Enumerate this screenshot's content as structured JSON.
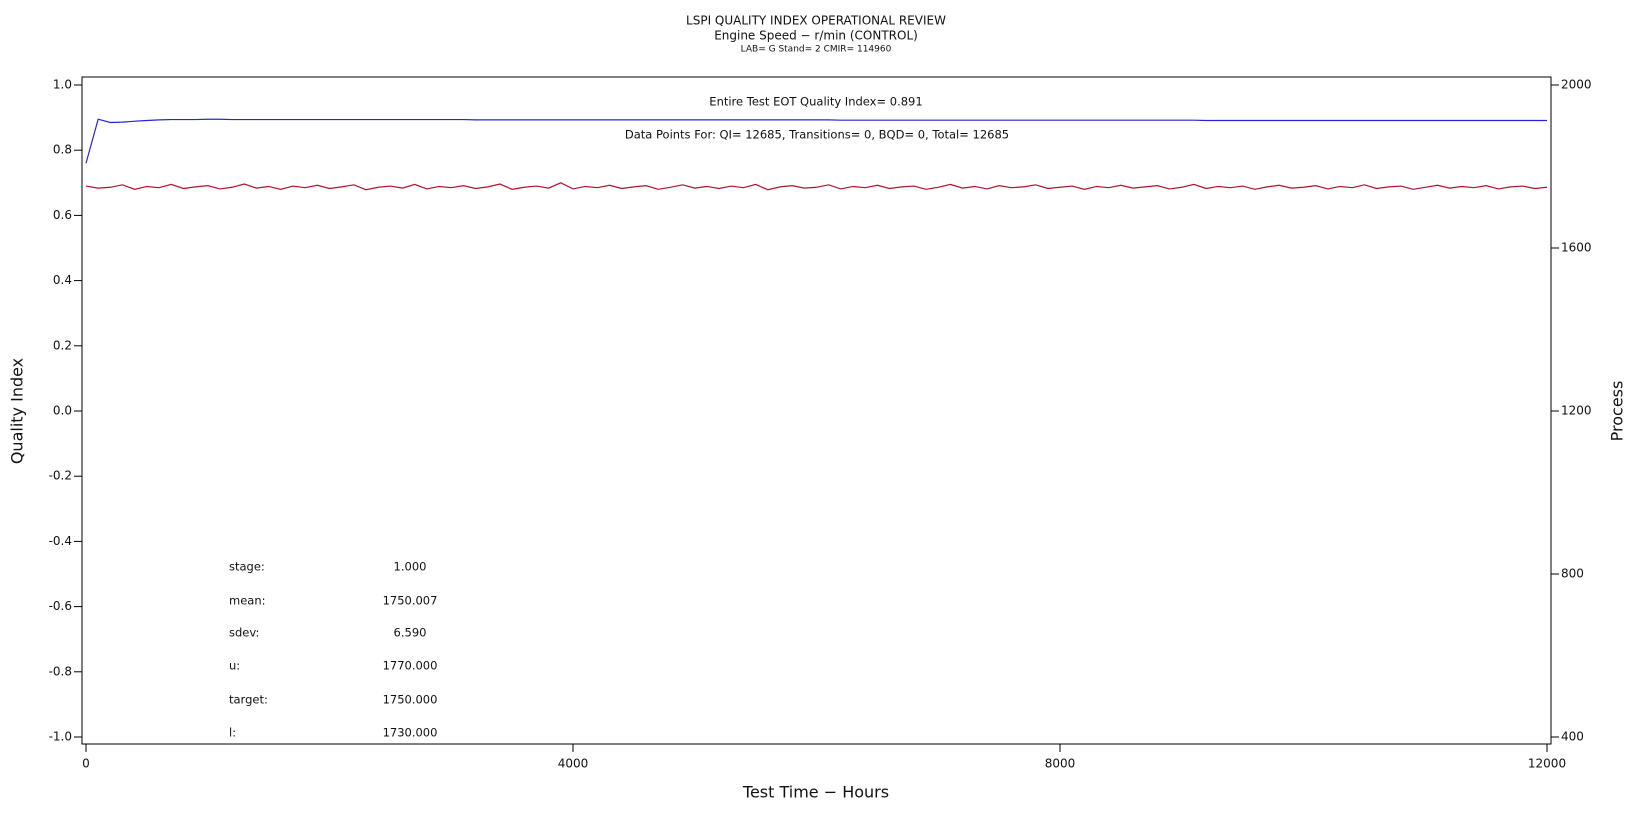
{
  "chart_data": {
    "type": "line",
    "title": "LSPI QUALITY INDEX OPERATIONAL REVIEW",
    "subtitle": "Engine Speed − r/min (CONTROL)",
    "subtitle2": "LAB= G Stand= 2 CMIR= 114960",
    "xlabel": "Test Time − Hours",
    "ylabel": "Quality Index",
    "y2label": "Process",
    "xlim": [
      0,
      12000
    ],
    "xticks": [
      0,
      4000,
      8000,
      12000
    ],
    "ylim": [
      -1,
      1
    ],
    "yticks": [
      {
        "value": -1,
        "label": "-1.0"
      },
      -0.8,
      -0.6,
      -0.4,
      -0.2,
      {
        "value": 0,
        "label": "0.0"
      },
      0.2,
      0.4,
      0.6,
      0.8,
      {
        "value": 1,
        "label": "1.0"
      }
    ],
    "y2lim": [
      400,
      2000
    ],
    "y2ticks": [
      400,
      800,
      1200,
      1600,
      2000
    ],
    "annotations": [
      "Entire Test EOT Quality Index=   0.891",
      "Data Points For: QI= 12685, Transitions=     0, BQD=     0, Total= 12685"
    ],
    "stats": [
      {
        "label": "stage:",
        "value": "1.000"
      },
      {
        "label": "mean:",
        "value": "1750.007"
      },
      {
        "label": "sdev:",
        "value": "6.590"
      },
      {
        "label": "u:",
        "value": "1770.000"
      },
      {
        "label": "target:",
        "value": "1750.000"
      },
      {
        "label": "l:",
        "value": "1730.000"
      }
    ],
    "x": [
      0,
      100,
      200,
      300,
      400,
      500,
      600,
      700,
      800,
      900,
      1000,
      1100,
      1200,
      1300,
      1400,
      1500,
      1600,
      1700,
      1800,
      1900,
      2000,
      2100,
      2200,
      2300,
      2400,
      2500,
      2600,
      2700,
      2800,
      2900,
      3000,
      3100,
      3200,
      3300,
      3400,
      3500,
      3600,
      3700,
      3800,
      3900,
      4000,
      4100,
      4200,
      4300,
      4400,
      4500,
      4600,
      4700,
      4800,
      4900,
      5000,
      5100,
      5200,
      5300,
      5400,
      5500,
      5600,
      5700,
      5800,
      5900,
      6000,
      6100,
      6200,
      6300,
      6400,
      6500,
      6600,
      6700,
      6800,
      6900,
      7000,
      7100,
      7200,
      7300,
      7400,
      7500,
      7600,
      7700,
      7800,
      7900,
      8000,
      8100,
      8200,
      8300,
      8400,
      8500,
      8600,
      8700,
      8800,
      8900,
      9000,
      9100,
      9200,
      9300,
      9400,
      9500,
      9600,
      9700,
      9800,
      9900,
      10000,
      10100,
      10200,
      10300,
      10400,
      10500,
      10600,
      10700,
      10800,
      10900,
      11000,
      11100,
      11200,
      11300,
      11400,
      11500,
      11600,
      11700,
      11800,
      11900,
      12000
    ],
    "series": [
      {
        "name": "Quality Index",
        "color": "#2424d8",
        "values": [
          0.76,
          0.895,
          0.885,
          0.886,
          0.889,
          0.891,
          0.893,
          0.894,
          0.894,
          0.894,
          0.895,
          0.895,
          0.894,
          0.894,
          0.894,
          0.894,
          0.894,
          0.894,
          0.894,
          0.894,
          0.894,
          0.894,
          0.894,
          0.894,
          0.894,
          0.894,
          0.894,
          0.894,
          0.894,
          0.894,
          0.894,
          0.894,
          0.893,
          0.893,
          0.893,
          0.893,
          0.893,
          0.893,
          0.893,
          0.893,
          0.893,
          0.893,
          0.893,
          0.893,
          0.893,
          0.893,
          0.893,
          0.893,
          0.893,
          0.893,
          0.893,
          0.893,
          0.893,
          0.893,
          0.893,
          0.893,
          0.893,
          0.893,
          0.893,
          0.893,
          0.893,
          0.893,
          0.892,
          0.892,
          0.892,
          0.892,
          0.892,
          0.892,
          0.892,
          0.892,
          0.892,
          0.892,
          0.892,
          0.892,
          0.892,
          0.892,
          0.892,
          0.892,
          0.892,
          0.892,
          0.892,
          0.892,
          0.892,
          0.892,
          0.892,
          0.892,
          0.892,
          0.892,
          0.892,
          0.892,
          0.892,
          0.892,
          0.891,
          0.891,
          0.891,
          0.891,
          0.891,
          0.891,
          0.891,
          0.891,
          0.891,
          0.891,
          0.891,
          0.891,
          0.891,
          0.891,
          0.891,
          0.891,
          0.891,
          0.891,
          0.891,
          0.891,
          0.891,
          0.891,
          0.891,
          0.891,
          0.891,
          0.891,
          0.891,
          0.891,
          0.891
        ]
      },
      {
        "name": "Process",
        "color": "#b3112e",
        "axis": "y2",
        "values": [
          1752,
          1747,
          1749,
          1755,
          1744,
          1751,
          1748,
          1756,
          1746,
          1750,
          1753,
          1745,
          1749,
          1757,
          1747,
          1751,
          1744,
          1752,
          1748,
          1754,
          1746,
          1750,
          1755,
          1743,
          1749,
          1752,
          1747,
          1756,
          1745,
          1751,
          1748,
          1753,
          1746,
          1750,
          1757,
          1744,
          1749,
          1752,
          1747,
          1760,
          1745,
          1751,
          1748,
          1754,
          1746,
          1750,
          1753,
          1744,
          1749,
          1755,
          1747,
          1751,
          1746,
          1752,
          1748,
          1756,
          1743,
          1750,
          1753,
          1747,
          1749,
          1755,
          1745,
          1751,
          1748,
          1754,
          1746,
          1750,
          1752,
          1744,
          1749,
          1756,
          1747,
          1751,
          1745,
          1753,
          1748,
          1750,
          1755,
          1746,
          1749,
          1752,
          1744,
          1751,
          1748,
          1754,
          1747,
          1750,
          1753,
          1745,
          1749,
          1756,
          1746,
          1751,
          1748,
          1752,
          1744,
          1750,
          1754,
          1747,
          1749,
          1753,
          1745,
          1751,
          1748,
          1755,
          1746,
          1750,
          1752,
          1744,
          1749,
          1754,
          1747,
          1751,
          1748,
          1753,
          1745,
          1750,
          1752,
          1746,
          1749
        ]
      }
    ]
  }
}
